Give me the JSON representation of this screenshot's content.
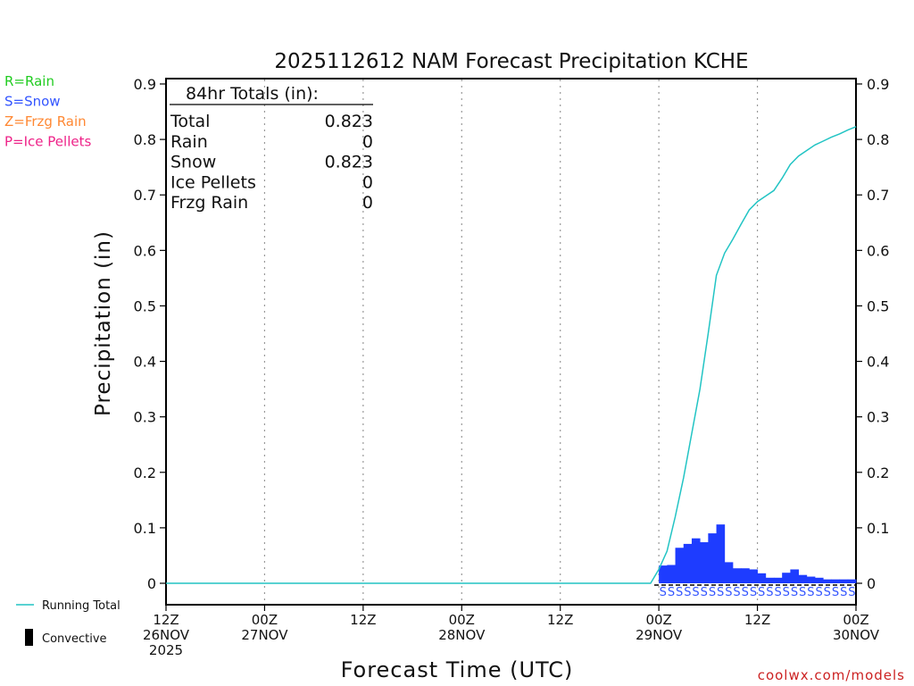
{
  "chart_data": {
    "type": "bar",
    "title": "2025112612 NAM Forecast Precipitation KCHE",
    "xlabel": "Forecast Time (UTC)",
    "ylabel": "Precipitation (in)",
    "ylim": [
      0,
      0.9
    ],
    "yticks": [
      "0.9",
      "0.8",
      "0.7",
      "0.6",
      "0.5",
      "0.4",
      "0.3",
      "0.2",
      "0.1",
      "0"
    ],
    "xlim_hours": [
      0,
      84
    ],
    "xticks": [
      {
        "hour": 0,
        "lines": [
          "12Z",
          "26NOV",
          "2025"
        ]
      },
      {
        "hour": 12,
        "lines": [
          "00Z",
          "27NOV"
        ]
      },
      {
        "hour": 24,
        "lines": [
          "12Z"
        ]
      },
      {
        "hour": 36,
        "lines": [
          "00Z",
          "28NOV"
        ]
      },
      {
        "hour": 48,
        "lines": [
          "12Z"
        ]
      },
      {
        "hour": 60,
        "lines": [
          "00Z",
          "29NOV"
        ]
      },
      {
        "hour": 72,
        "lines": [
          "12Z"
        ]
      },
      {
        "hour": 84,
        "lines": [
          "00Z",
          "30NOV"
        ]
      }
    ],
    "legend": [
      {
        "label": "R=Rain",
        "color": "#22cc22"
      },
      {
        "label": "S=Snow",
        "color": "#3355ff"
      },
      {
        "label": "Z=Frzg Rain",
        "color": "#ff8833"
      },
      {
        "label": "P=Ice Pellets",
        "color": "#ee2288"
      }
    ],
    "series_legend": {
      "running_total": "Running Total",
      "convective": "Convective"
    },
    "totals": {
      "heading": "84hr Totals (in):",
      "rows": [
        {
          "label": "Total",
          "value": "0.823"
        },
        {
          "label": "Rain",
          "value": "0"
        },
        {
          "label": "Snow",
          "value": "0.823"
        },
        {
          "label": "Ice Pellets",
          "value": "0"
        },
        {
          "label": "Frzg Rain",
          "value": "0"
        }
      ]
    },
    "precip_type_marker": "S",
    "bars": {
      "name": "Hourly Snow",
      "color": "#1e3cff",
      "hours": [
        60,
        61,
        62,
        63,
        64,
        65,
        66,
        67,
        68,
        69,
        70,
        71,
        72,
        73,
        74,
        75,
        76,
        77,
        78,
        79,
        80,
        81,
        82,
        83
      ],
      "values": [
        0.032,
        0.033,
        0.064,
        0.071,
        0.081,
        0.074,
        0.09,
        0.106,
        0.038,
        0.027,
        0.027,
        0.025,
        0.018,
        0.01,
        0.01,
        0.019,
        0.025,
        0.015,
        0.012,
        0.01,
        0.007,
        0.007,
        0.007,
        0.007
      ]
    },
    "running_total": {
      "name": "Running Total",
      "color": "#22c4c4",
      "points": [
        [
          0,
          0
        ],
        [
          59,
          0
        ],
        [
          60,
          0.025
        ],
        [
          61,
          0.058
        ],
        [
          62,
          0.12
        ],
        [
          63,
          0.19
        ],
        [
          64,
          0.27
        ],
        [
          65,
          0.35
        ],
        [
          66,
          0.45
        ],
        [
          67,
          0.555
        ],
        [
          68,
          0.595
        ],
        [
          69,
          0.62
        ],
        [
          70,
          0.647
        ],
        [
          71,
          0.673
        ],
        [
          72,
          0.688
        ],
        [
          73,
          0.698
        ],
        [
          74,
          0.708
        ],
        [
          75,
          0.73
        ],
        [
          76,
          0.755
        ],
        [
          77,
          0.77
        ],
        [
          78,
          0.78
        ],
        [
          79,
          0.79
        ],
        [
          80,
          0.797
        ],
        [
          81,
          0.804
        ],
        [
          82,
          0.81
        ],
        [
          83,
          0.817
        ],
        [
          84,
          0.823
        ]
      ]
    }
  },
  "footer": {
    "credit": "coolwx.com/models"
  }
}
